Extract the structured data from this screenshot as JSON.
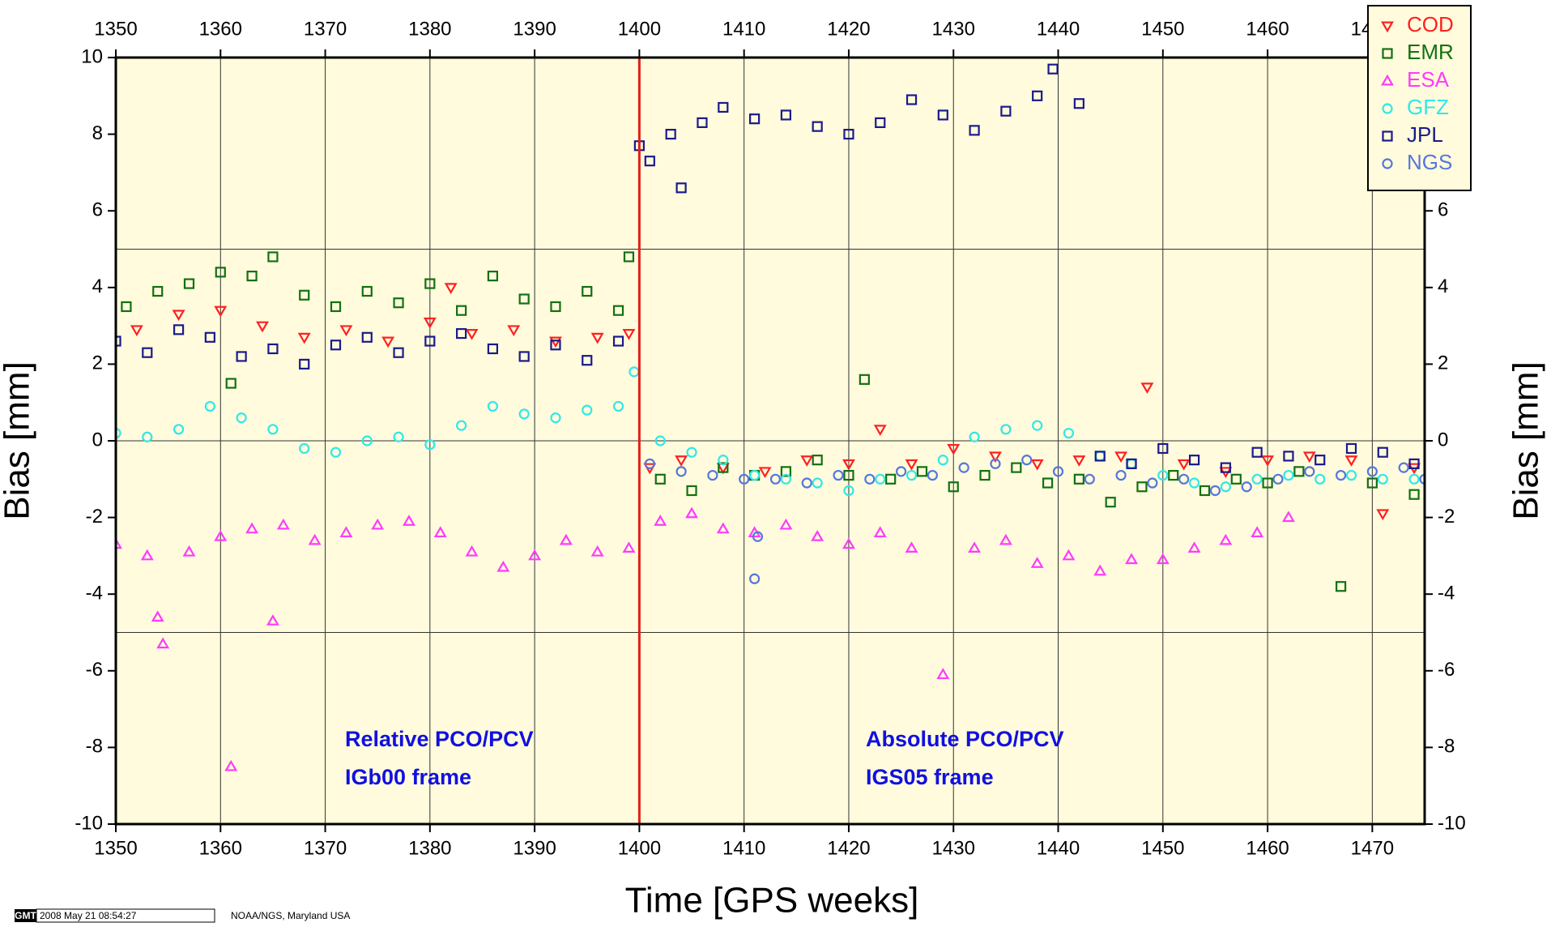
{
  "chart_data": {
    "type": "scatter",
    "xlabel": "Time [GPS weeks]",
    "ylabel": "Bias [mm]",
    "y2label": "Bias [mm]",
    "xlim": [
      1350,
      1475
    ],
    "ylim": [
      -10,
      10
    ],
    "xticks": [
      1350,
      1360,
      1370,
      1380,
      1390,
      1400,
      1410,
      1420,
      1430,
      1440,
      1450,
      1460,
      1470
    ],
    "yticks": [
      -10,
      -8,
      -6,
      -4,
      -2,
      0,
      2,
      4,
      6,
      8,
      10
    ],
    "ygrid": [
      -5,
      0,
      5
    ],
    "grid": true,
    "background": "#fffbdc",
    "vline": {
      "x": 1400,
      "color": "#e0201a"
    },
    "legend": "top-right",
    "annotations": [
      "Relative PCO/PCV",
      "IGb00 frame",
      "Absolute PCO/PCV",
      "IGS05 frame"
    ],
    "footer": {
      "logo": "GMT",
      "timestamp": "2008 May 21 08:54:27",
      "credit": "NOAA/NGS, Maryland USA"
    },
    "series": [
      {
        "name": "COD",
        "color": "#ff2020",
        "marker": "triangle-down",
        "x": [
          1352,
          1356,
          1360,
          1364,
          1368,
          1372,
          1376,
          1380,
          1382,
          1384,
          1388,
          1392,
          1396,
          1399,
          1401,
          1404,
          1408,
          1412,
          1416,
          1420,
          1423,
          1426,
          1430,
          1434,
          1438,
          1442,
          1446,
          1448.5,
          1452,
          1456,
          1460,
          1464,
          1468,
          1471,
          1474
        ],
        "values": [
          2.9,
          3.3,
          3.4,
          3.0,
          2.7,
          2.9,
          2.6,
          3.1,
          4.0,
          2.8,
          2.9,
          2.6,
          2.7,
          2.8,
          -0.7,
          -0.5,
          -0.7,
          -0.8,
          -0.5,
          -0.6,
          0.3,
          -0.6,
          -0.2,
          -0.4,
          -0.6,
          -0.5,
          -0.4,
          1.4,
          -0.6,
          -0.8,
          -0.5,
          -0.4,
          -0.5,
          -1.9,
          -0.7
        ]
      },
      {
        "name": "EMR",
        "color": "#137013",
        "marker": "square",
        "x": [
          1351,
          1354,
          1357,
          1360,
          1361,
          1363,
          1365,
          1368,
          1371,
          1374,
          1377,
          1380,
          1383,
          1386,
          1389,
          1392,
          1395,
          1398,
          1399,
          1402,
          1405,
          1408,
          1411,
          1414,
          1417,
          1420,
          1421.5,
          1424,
          1427,
          1430,
          1433,
          1436,
          1439,
          1442,
          1445,
          1448,
          1451,
          1454,
          1457,
          1460,
          1463,
          1467,
          1470,
          1474
        ],
        "values": [
          3.5,
          3.9,
          4.1,
          4.4,
          1.5,
          4.3,
          4.8,
          3.8,
          3.5,
          3.9,
          3.6,
          4.1,
          3.4,
          4.3,
          3.7,
          3.5,
          3.9,
          3.4,
          4.8,
          -1.0,
          -1.3,
          -0.7,
          -0.9,
          -0.8,
          -0.5,
          -0.9,
          1.6,
          -1.0,
          -0.8,
          -1.2,
          -0.9,
          -0.7,
          -1.1,
          -1.0,
          -1.6,
          -1.2,
          -0.9,
          -1.3,
          -1.0,
          -1.1,
          -0.8,
          -3.8,
          -1.1,
          -1.4
        ]
      },
      {
        "name": "ESA",
        "color": "#ff3aff",
        "marker": "triangle-up",
        "x": [
          1350,
          1353,
          1354,
          1354.5,
          1357,
          1360,
          1361,
          1363,
          1365,
          1366,
          1369,
          1372,
          1375,
          1378,
          1381,
          1384,
          1387,
          1390,
          1393,
          1396,
          1399,
          1402,
          1405,
          1408,
          1411,
          1414,
          1417,
          1420,
          1423,
          1426,
          1429,
          1432,
          1435,
          1438,
          1441,
          1444,
          1447,
          1450,
          1453,
          1456,
          1459,
          1462
        ],
        "values": [
          -2.7,
          -3.0,
          -4.6,
          -5.3,
          -2.9,
          -2.5,
          -8.5,
          -2.3,
          -4.7,
          -2.2,
          -2.6,
          -2.4,
          -2.2,
          -2.1,
          -2.4,
          -2.9,
          -3.3,
          -3.0,
          -2.6,
          -2.9,
          -2.8,
          -2.1,
          -1.9,
          -2.3,
          -2.4,
          -2.2,
          -2.5,
          -2.7,
          -2.4,
          -2.8,
          -6.1,
          -2.8,
          -2.6,
          -3.2,
          -3.0,
          -3.4,
          -3.1,
          -3.1,
          -2.8,
          -2.6,
          -2.4,
          -2.0
        ]
      },
      {
        "name": "GFZ",
        "color": "#30e8e8",
        "marker": "circle",
        "x": [
          1350,
          1353,
          1356,
          1359,
          1362,
          1365,
          1368,
          1371,
          1374,
          1377,
          1380,
          1383,
          1386,
          1389,
          1392,
          1395,
          1398,
          1399.5,
          1402,
          1405,
          1408,
          1411,
          1414,
          1417,
          1420,
          1423,
          1426,
          1429,
          1432,
          1435,
          1438,
          1441,
          1444,
          1447,
          1450,
          1453,
          1456,
          1459,
          1462,
          1465,
          1468,
          1471,
          1474
        ],
        "values": [
          0.2,
          0.1,
          0.3,
          0.9,
          0.6,
          0.3,
          -0.2,
          -0.3,
          0.0,
          0.1,
          -0.1,
          0.4,
          0.9,
          0.7,
          0.6,
          0.8,
          0.9,
          1.8,
          0.0,
          -0.3,
          -0.5,
          -0.9,
          -1.0,
          -1.1,
          -1.3,
          -1.0,
          -0.9,
          -0.5,
          0.1,
          0.3,
          0.4,
          0.2,
          -0.4,
          -0.6,
          -0.9,
          -1.1,
          -1.2,
          -1.0,
          -0.9,
          -1.0,
          -0.9,
          -1.0,
          -1.0
        ]
      },
      {
        "name": "JPL",
        "color": "#1a1a8c",
        "marker": "square",
        "x": [
          1350,
          1353,
          1356,
          1359,
          1362,
          1365,
          1368,
          1371,
          1374,
          1377,
          1380,
          1383,
          1386,
          1389,
          1392,
          1395,
          1398,
          1400,
          1401,
          1403,
          1404,
          1406,
          1408,
          1411,
          1414,
          1417,
          1420,
          1423,
          1426,
          1429,
          1432,
          1435,
          1438,
          1439.5,
          1442,
          1444,
          1447,
          1450,
          1453,
          1456,
          1459,
          1462,
          1465,
          1468,
          1471,
          1474
        ],
        "values": [
          2.6,
          2.3,
          2.9,
          2.7,
          2.2,
          2.4,
          2.0,
          2.5,
          2.7,
          2.3,
          2.6,
          2.8,
          2.4,
          2.2,
          2.5,
          2.1,
          2.6,
          7.7,
          7.3,
          8.0,
          6.6,
          8.3,
          8.7,
          8.4,
          8.5,
          8.2,
          8.0,
          8.3,
          8.9,
          8.5,
          8.1,
          8.6,
          9.0,
          9.7,
          8.8,
          -0.4,
          -0.6,
          -0.2,
          -0.5,
          -0.7,
          -0.3,
          -0.4,
          -0.5,
          -0.2,
          -0.3,
          -0.6
        ]
      },
      {
        "name": "NGS",
        "color": "#5577dd",
        "marker": "circle",
        "x": [
          1401,
          1404,
          1407,
          1410,
          1411,
          1411.3,
          1413,
          1416,
          1419,
          1422,
          1425,
          1428,
          1431,
          1434,
          1437,
          1440,
          1443,
          1446,
          1449,
          1452,
          1455,
          1458,
          1461,
          1464,
          1467,
          1470,
          1473,
          1475
        ],
        "values": [
          -0.6,
          -0.8,
          -0.9,
          -1.0,
          -3.6,
          -2.5,
          -1.0,
          -1.1,
          -0.9,
          -1.0,
          -0.8,
          -0.9,
          -0.7,
          -0.6,
          -0.5,
          -0.8,
          -1.0,
          -0.9,
          -1.1,
          -1.0,
          -1.3,
          -1.2,
          -1.0,
          -0.8,
          -0.9,
          -0.8,
          -0.7,
          -1.0
        ]
      }
    ]
  }
}
